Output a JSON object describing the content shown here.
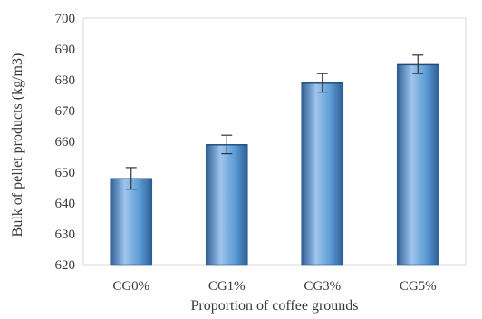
{
  "chart_data": {
    "type": "bar",
    "categories": [
      "CG0%",
      "CG1%",
      "CG3%",
      "CG5%"
    ],
    "values": [
      648,
      659,
      679,
      685
    ],
    "error_bars": [
      3.5,
      3.0,
      3.0,
      3.0
    ],
    "xlabel": "Proportion of coffee grounds",
    "ylabel": "Bulk of pellet products (kg/m3)",
    "ylim": [
      620,
      700
    ],
    "yticks": [
      620,
      630,
      640,
      650,
      660,
      670,
      680,
      690,
      700
    ],
    "grid": false,
    "bar_color": "#5b9bd5",
    "bar_color_dark": "#2e5e95",
    "bar_color_light": "#9fc5ee",
    "axis_color": "#d9d9d9",
    "text_color": "#3a3a3a"
  }
}
